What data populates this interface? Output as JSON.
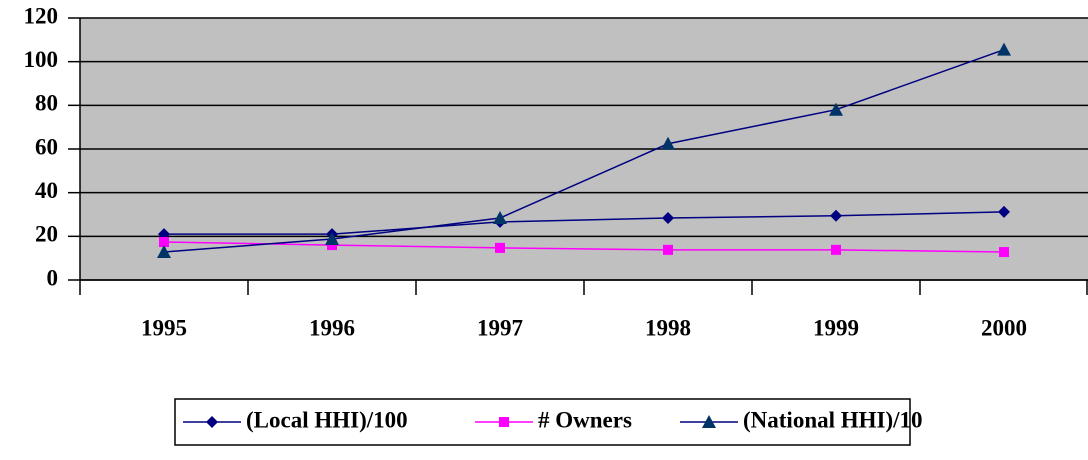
{
  "chart_data": {
    "type": "line",
    "categories": [
      "1995",
      "1996",
      "1997",
      "1998",
      "1999",
      "2000"
    ],
    "series": [
      {
        "name": "(Local HHI)/100",
        "color": "#000080",
        "marker": "diamond",
        "values": [
          21,
          21,
          26.6,
          28.4,
          29.4,
          31.2
        ]
      },
      {
        "name": "# Owners",
        "color": "#FF00FF",
        "marker": "square",
        "values": [
          17.4,
          16,
          14.7,
          13.8,
          13.8,
          12.8
        ]
      },
      {
        "name": "(National HHI)/10",
        "color": "#000080",
        "marker": "triangle",
        "values": [
          12.8,
          18.8,
          28.4,
          62.4,
          78,
          105.5
        ]
      }
    ],
    "ylim": [
      0,
      120
    ],
    "yticks": [
      0,
      20,
      40,
      60,
      80,
      100,
      120
    ],
    "grid": true,
    "legend": "bottom"
  }
}
